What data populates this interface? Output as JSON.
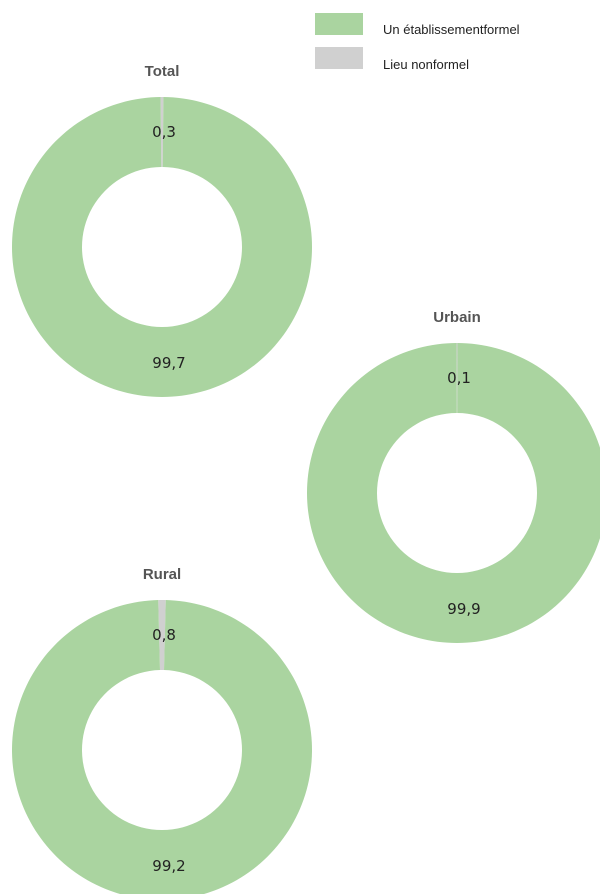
{
  "chart_data": {
    "type": "pie",
    "legend": {
      "placement": "top-right",
      "entries": [
        {
          "label": "Un établissementformel",
          "color": "#aad4a0"
        },
        {
          "label": "Lieu nonformel",
          "color": "#d0d0d0"
        }
      ]
    },
    "charts": [
      {
        "title": "Total",
        "slices": [
          {
            "series": "Un établissementformel",
            "value": 99.7,
            "label": "99,7"
          },
          {
            "series": "Lieu nonformel",
            "value": 0.3,
            "label": "0,3"
          }
        ]
      },
      {
        "title": "Urbain",
        "slices": [
          {
            "series": "Un établissementformel",
            "value": 99.9,
            "label": "99,9"
          },
          {
            "series": "Lieu nonformel",
            "value": 0.1,
            "label": "0,1"
          }
        ]
      },
      {
        "title": "Rural",
        "slices": [
          {
            "series": "Un établissementformel",
            "value": 99.2,
            "label": "99,2"
          },
          {
            "series": "Lieu nonformel",
            "value": 0.8,
            "label": "0,8"
          }
        ]
      }
    ]
  }
}
